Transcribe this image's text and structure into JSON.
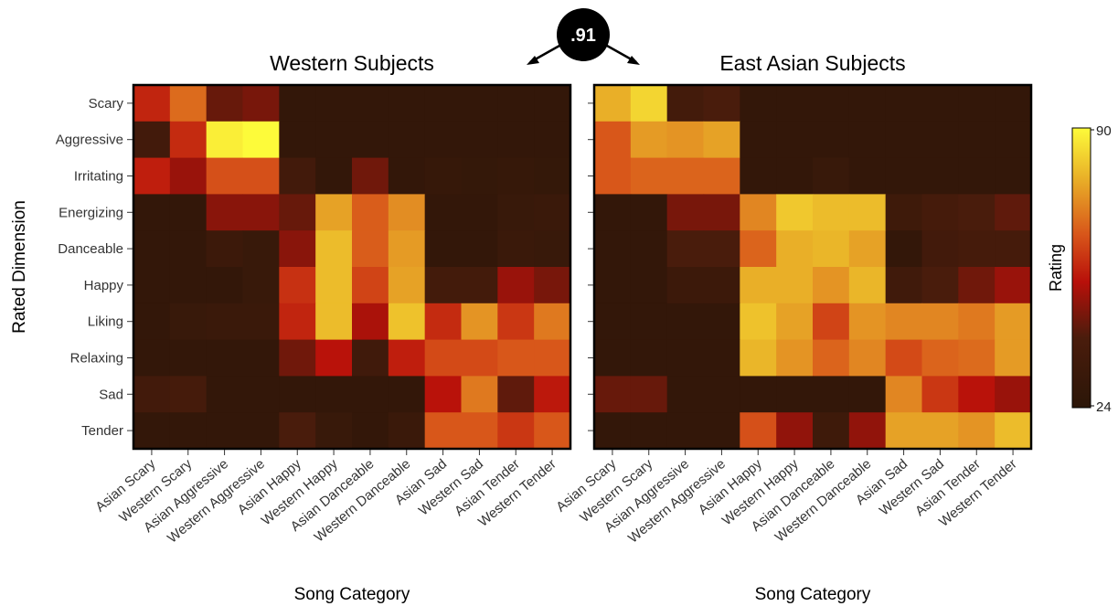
{
  "correlation_label": ".91",
  "chart_data": [
    {
      "type": "heatmap",
      "title": "Western Subjects",
      "xlabel": "Song Category",
      "ylabel": "Rated Dimension",
      "x_categories": [
        "Asian Scary",
        "Western Scary",
        "Asian Aggressive",
        "Western Aggressive",
        "Asian Happy",
        "Western Happy",
        "Asian Danceable",
        "Western Danceable",
        "Asian Sad",
        "Western Sad",
        "Asian Tender",
        "Western Tender"
      ],
      "y_categories": [
        "Scary",
        "Aggressive",
        "Irritating",
        "Energizing",
        "Danceable",
        "Happy",
        "Liking",
        "Relaxing",
        "Sad",
        "Tender"
      ],
      "values": [
        [
          57,
          68,
          44,
          46,
          28,
          28,
          28,
          28,
          28,
          28,
          28,
          28
        ],
        [
          36,
          58,
          88,
          90,
          28,
          28,
          28,
          28,
          28,
          28,
          28,
          28
        ],
        [
          56,
          50,
          64,
          64,
          36,
          28,
          45,
          28,
          30,
          29,
          30,
          29
        ],
        [
          28,
          28,
          48,
          48,
          44,
          76,
          66,
          73,
          28,
          28,
          31,
          32
        ],
        [
          28,
          28,
          33,
          31,
          48,
          80,
          66,
          75,
          28,
          28,
          32,
          31
        ],
        [
          28,
          28,
          28,
          31,
          59,
          80,
          62,
          76,
          37,
          37,
          50,
          46
        ],
        [
          28,
          31,
          32,
          32,
          57,
          80,
          52,
          81,
          58,
          74,
          60,
          70
        ],
        [
          28,
          28,
          28,
          28,
          45,
          54,
          35,
          56,
          63,
          63,
          65,
          65
        ],
        [
          36,
          38,
          28,
          28,
          28,
          28,
          28,
          28,
          54,
          70,
          43,
          55
        ],
        [
          28,
          28,
          28,
          28,
          40,
          31,
          28,
          32,
          65,
          65,
          60,
          65
        ]
      ],
      "colorbar": {
        "title": "Rating",
        "min": 24,
        "max": 90
      }
    },
    {
      "type": "heatmap",
      "title": "East Asian Subjects",
      "xlabel": "Song Category",
      "ylabel": "",
      "x_categories": [
        "Asian Scary",
        "Western Scary",
        "Asian Aggressive",
        "Western Aggressive",
        "Asian Happy",
        "Western Happy",
        "Asian Danceable",
        "Western Danceable",
        "Asian Sad",
        "Western Sad",
        "Asian Tender",
        "Western Tender"
      ],
      "y_categories": [
        "Scary",
        "Aggressive",
        "Irritating",
        "Energizing",
        "Danceable",
        "Happy",
        "Liking",
        "Relaxing",
        "Sad",
        "Tender"
      ],
      "values": [
        [
          78,
          84,
          37,
          40,
          28,
          28,
          28,
          28,
          28,
          28,
          28,
          28
        ],
        [
          65,
          75,
          74,
          76,
          28,
          28,
          28,
          28,
          28,
          28,
          28,
          28
        ],
        [
          65,
          67,
          67,
          67,
          28,
          28,
          31,
          28,
          28,
          28,
          28,
          28
        ],
        [
          28,
          28,
          46,
          46,
          72,
          82,
          80,
          80,
          34,
          38,
          40,
          43
        ],
        [
          28,
          28,
          40,
          40,
          67,
          78,
          79,
          76,
          28,
          36,
          38,
          38
        ],
        [
          28,
          28,
          33,
          33,
          78,
          78,
          74,
          79,
          35,
          40,
          45,
          50
        ],
        [
          28,
          28,
          28,
          28,
          81,
          76,
          62,
          74,
          72,
          72,
          70,
          75
        ],
        [
          28,
          28,
          28,
          28,
          79,
          74,
          67,
          72,
          63,
          67,
          68,
          75
        ],
        [
          44,
          44,
          28,
          28,
          28,
          28,
          28,
          28,
          72,
          60,
          54,
          50
        ],
        [
          28,
          28,
          28,
          28,
          64,
          49,
          34,
          49,
          76,
          76,
          74,
          80
        ]
      ],
      "colorbar": {
        "title": "Rating",
        "min": 24,
        "max": 90
      }
    }
  ]
}
